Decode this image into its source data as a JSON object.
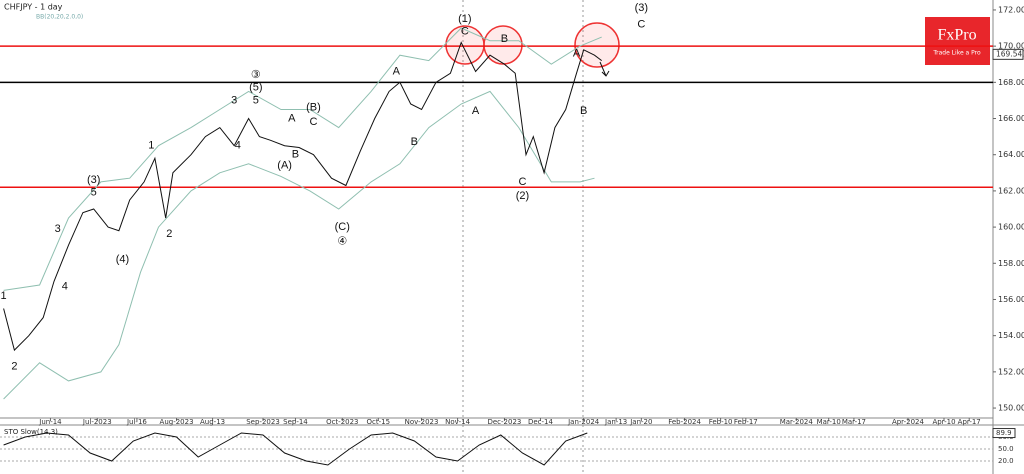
{
  "chart_data": {
    "type": "line",
    "title": "CHFJPY - 1 day",
    "subtitle": "BB(20,20,2.0,0)",
    "logo": {
      "name": "FxPro",
      "tagline": "Trade Like a Pro"
    },
    "xlim": [
      -1,
      274.6
    ],
    "ylim": [
      149.45,
      172.55
    ],
    "xticks": [
      {
        "value": 13,
        "label": "Jun-14"
      },
      {
        "value": 26,
        "label": "Jul-2023"
      },
      {
        "value": 37,
        "label": "Jul-16"
      },
      {
        "value": 48,
        "label": "Aug-2023"
      },
      {
        "value": 58,
        "label": "Aug-13"
      },
      {
        "value": 72,
        "label": "Sep-2023"
      },
      {
        "value": 81,
        "label": "Sep-14"
      },
      {
        "value": 94,
        "label": "Oct-2023"
      },
      {
        "value": 104,
        "label": "Oct-15"
      },
      {
        "value": 116,
        "label": "Nov-2023"
      },
      {
        "value": 126,
        "label": "Nov-14"
      },
      {
        "value": 139,
        "label": "Dec-2023"
      },
      {
        "value": 149,
        "label": "Dec-14"
      },
      {
        "value": 161,
        "label": "Jan-2024"
      },
      {
        "value": 170,
        "label": "Jan-13"
      },
      {
        "value": 177,
        "label": "Jan-20"
      },
      {
        "value": 189,
        "label": "Feb-2024"
      },
      {
        "value": 199,
        "label": "Feb-10"
      },
      {
        "value": 206,
        "label": "Feb-17"
      },
      {
        "value": 220,
        "label": "Mar-2024"
      },
      {
        "value": 229,
        "label": "Mar-10"
      },
      {
        "value": 236,
        "label": "Mar-17"
      },
      {
        "value": 251,
        "label": "Apr-2024"
      },
      {
        "value": 261,
        "label": "Apr-10"
      },
      {
        "value": 268,
        "label": "Apr-17"
      }
    ],
    "yticks": [
      {
        "value": 150,
        "label": "150.000"
      },
      {
        "value": 152,
        "label": "152.000"
      },
      {
        "value": 154,
        "label": "154.000"
      },
      {
        "value": 156,
        "label": "156.000"
      },
      {
        "value": 158,
        "label": "158.000"
      },
      {
        "value": 160,
        "label": "160.000"
      },
      {
        "value": 162,
        "label": "162.000"
      },
      {
        "value": 164,
        "label": "164.000"
      },
      {
        "value": 166,
        "label": "166.000"
      },
      {
        "value": 168,
        "label": "168.000"
      },
      {
        "value": 170,
        "label": "170.000"
      },
      {
        "value": 172,
        "label": "172.000"
      }
    ],
    "current_price": {
      "value": 169.547,
      "label": "169.547"
    },
    "levels": [
      {
        "value": 170.0,
        "color": "#ee1111"
      },
      {
        "value": 168.0,
        "color": "#000000"
      },
      {
        "value": 162.2,
        "color": "#ee1111"
      }
    ],
    "series": [
      {
        "color": "#8fbfb0",
        "x": [
          0,
          10,
          18,
          27,
          35,
          43,
          52,
          60,
          68,
          77,
          85,
          93,
          102,
          110,
          118,
          127,
          135,
          143,
          152,
          160,
          166
        ],
        "values": [
          156.5,
          156.8,
          160.5,
          162.5,
          162.7,
          164.5,
          165.5,
          166.5,
          167.5,
          166.5,
          166.5,
          165.5,
          167.5,
          169.5,
          169.2,
          171.0,
          170.3,
          170.3,
          169.0,
          170.0,
          170.5
        ]
      },
      {
        "color": "#8fbfb0",
        "x": [
          0,
          10,
          18,
          27,
          32,
          38,
          43,
          52,
          60,
          68,
          77,
          85,
          93,
          102,
          110,
          118,
          127,
          135,
          143,
          152,
          160,
          164
        ],
        "values": [
          150.5,
          152.5,
          151.5,
          152.0,
          153.5,
          157.5,
          160.0,
          162.0,
          163.0,
          163.5,
          162.8,
          162.0,
          161.0,
          162.5,
          163.5,
          165.5,
          166.8,
          167.5,
          165.5,
          162.5,
          162.5,
          162.7
        ]
      },
      {
        "color": "#111111",
        "x": [
          0,
          3,
          7,
          11,
          14,
          18,
          22,
          25,
          29,
          32,
          35,
          39,
          42,
          45,
          47,
          52,
          56,
          60,
          64,
          68,
          71,
          74,
          78,
          82,
          86,
          91,
          95,
          99,
          103,
          107,
          110,
          113,
          116,
          120,
          124,
          127,
          131,
          135,
          139,
          142,
          145,
          147,
          150,
          153,
          156,
          159,
          161,
          164,
          166
        ],
        "values": [
          155.5,
          153.2,
          154.0,
          155.0,
          157.0,
          159.0,
          160.8,
          161.0,
          160.0,
          159.8,
          161.5,
          162.5,
          163.8,
          160.5,
          163.0,
          164.0,
          165.0,
          165.5,
          164.5,
          166.0,
          165.0,
          164.8,
          164.5,
          164.4,
          164.0,
          162.7,
          162.3,
          164.2,
          166.0,
          167.5,
          168.0,
          166.8,
          166.5,
          168.0,
          168.5,
          170.2,
          168.6,
          169.5,
          169.0,
          168.5,
          164.0,
          165.0,
          163.0,
          165.5,
          166.5,
          168.5,
          169.8,
          169.5,
          169.2
        ]
      }
    ],
    "annotations": [
      {
        "text": "1",
        "x": 0,
        "y": 156.2
      },
      {
        "text": "2",
        "x": 3,
        "y": 152.3
      },
      {
        "text": "3",
        "x": 15,
        "y": 159.9
      },
      {
        "text": "4",
        "x": 17,
        "y": 156.7
      },
      {
        "text": "(3)",
        "x": 25,
        "y": 162.6
      },
      {
        "text": "5",
        "x": 25,
        "y": 161.9
      },
      {
        "text": "(4)",
        "x": 33,
        "y": 158.2
      },
      {
        "text": "1",
        "x": 41,
        "y": 164.5
      },
      {
        "text": "2",
        "x": 46,
        "y": 159.6
      },
      {
        "text": "3",
        "x": 64,
        "y": 167.0
      },
      {
        "text": "4",
        "x": 65,
        "y": 164.5
      },
      {
        "text": "③",
        "x": 70,
        "y": 168.4
      },
      {
        "text": "(5)",
        "x": 70,
        "y": 167.7
      },
      {
        "text": "5",
        "x": 70,
        "y": 167.0
      },
      {
        "text": "A",
        "x": 80,
        "y": 166.0
      },
      {
        "text": "(B)",
        "x": 86,
        "y": 166.6
      },
      {
        "text": "C",
        "x": 86,
        "y": 165.8
      },
      {
        "text": "(A)",
        "x": 78,
        "y": 163.4
      },
      {
        "text": "B",
        "x": 81,
        "y": 164.0
      },
      {
        "text": "(C)",
        "x": 94,
        "y": 160.0
      },
      {
        "text": "④",
        "x": 94,
        "y": 159.2
      },
      {
        "text": "A",
        "x": 109,
        "y": 168.6
      },
      {
        "text": "B",
        "x": 114,
        "y": 164.7
      },
      {
        "text": "(1)",
        "x": 128,
        "y": 171.5
      },
      {
        "text": "C",
        "x": 128,
        "y": 170.8
      },
      {
        "text": "A",
        "x": 131,
        "y": 166.4
      },
      {
        "text": "B",
        "x": 139,
        "y": 170.4
      },
      {
        "text": "C",
        "x": 144,
        "y": 162.5
      },
      {
        "text": "(2)",
        "x": 144,
        "y": 161.7
      },
      {
        "text": "A",
        "x": 159,
        "y": 169.6
      },
      {
        "text": "B",
        "x": 161,
        "y": 166.4
      },
      {
        "text": "(3)",
        "x": 177,
        "y": 172.1
      },
      {
        "text": "C",
        "x": 177,
        "y": 171.2
      }
    ],
    "indicator": {
      "title": "STO Slow(14,3)",
      "ylim": [
        0,
        100
      ],
      "yticks": [
        {
          "value": 80,
          "label": "80.0"
        },
        {
          "value": 50,
          "label": "50.0"
        },
        {
          "value": 20,
          "label": "20.0"
        }
      ],
      "current": {
        "value": 89.9,
        "label": "89.9"
      },
      "series": [
        {
          "color": "#111111",
          "x": [
            0,
            6,
            12,
            18,
            24,
            30,
            36,
            42,
            48,
            54,
            60,
            66,
            72,
            78,
            84,
            90,
            96,
            102,
            108,
            114,
            120,
            126,
            132,
            138,
            144,
            150,
            156,
            162
          ],
          "values": [
            60,
            80,
            90,
            85,
            40,
            20,
            70,
            90,
            80,
            30,
            60,
            90,
            85,
            40,
            20,
            10,
            50,
            85,
            90,
            70,
            30,
            20,
            60,
            85,
            40,
            10,
            70,
            89.9
          ]
        }
      ]
    }
  }
}
